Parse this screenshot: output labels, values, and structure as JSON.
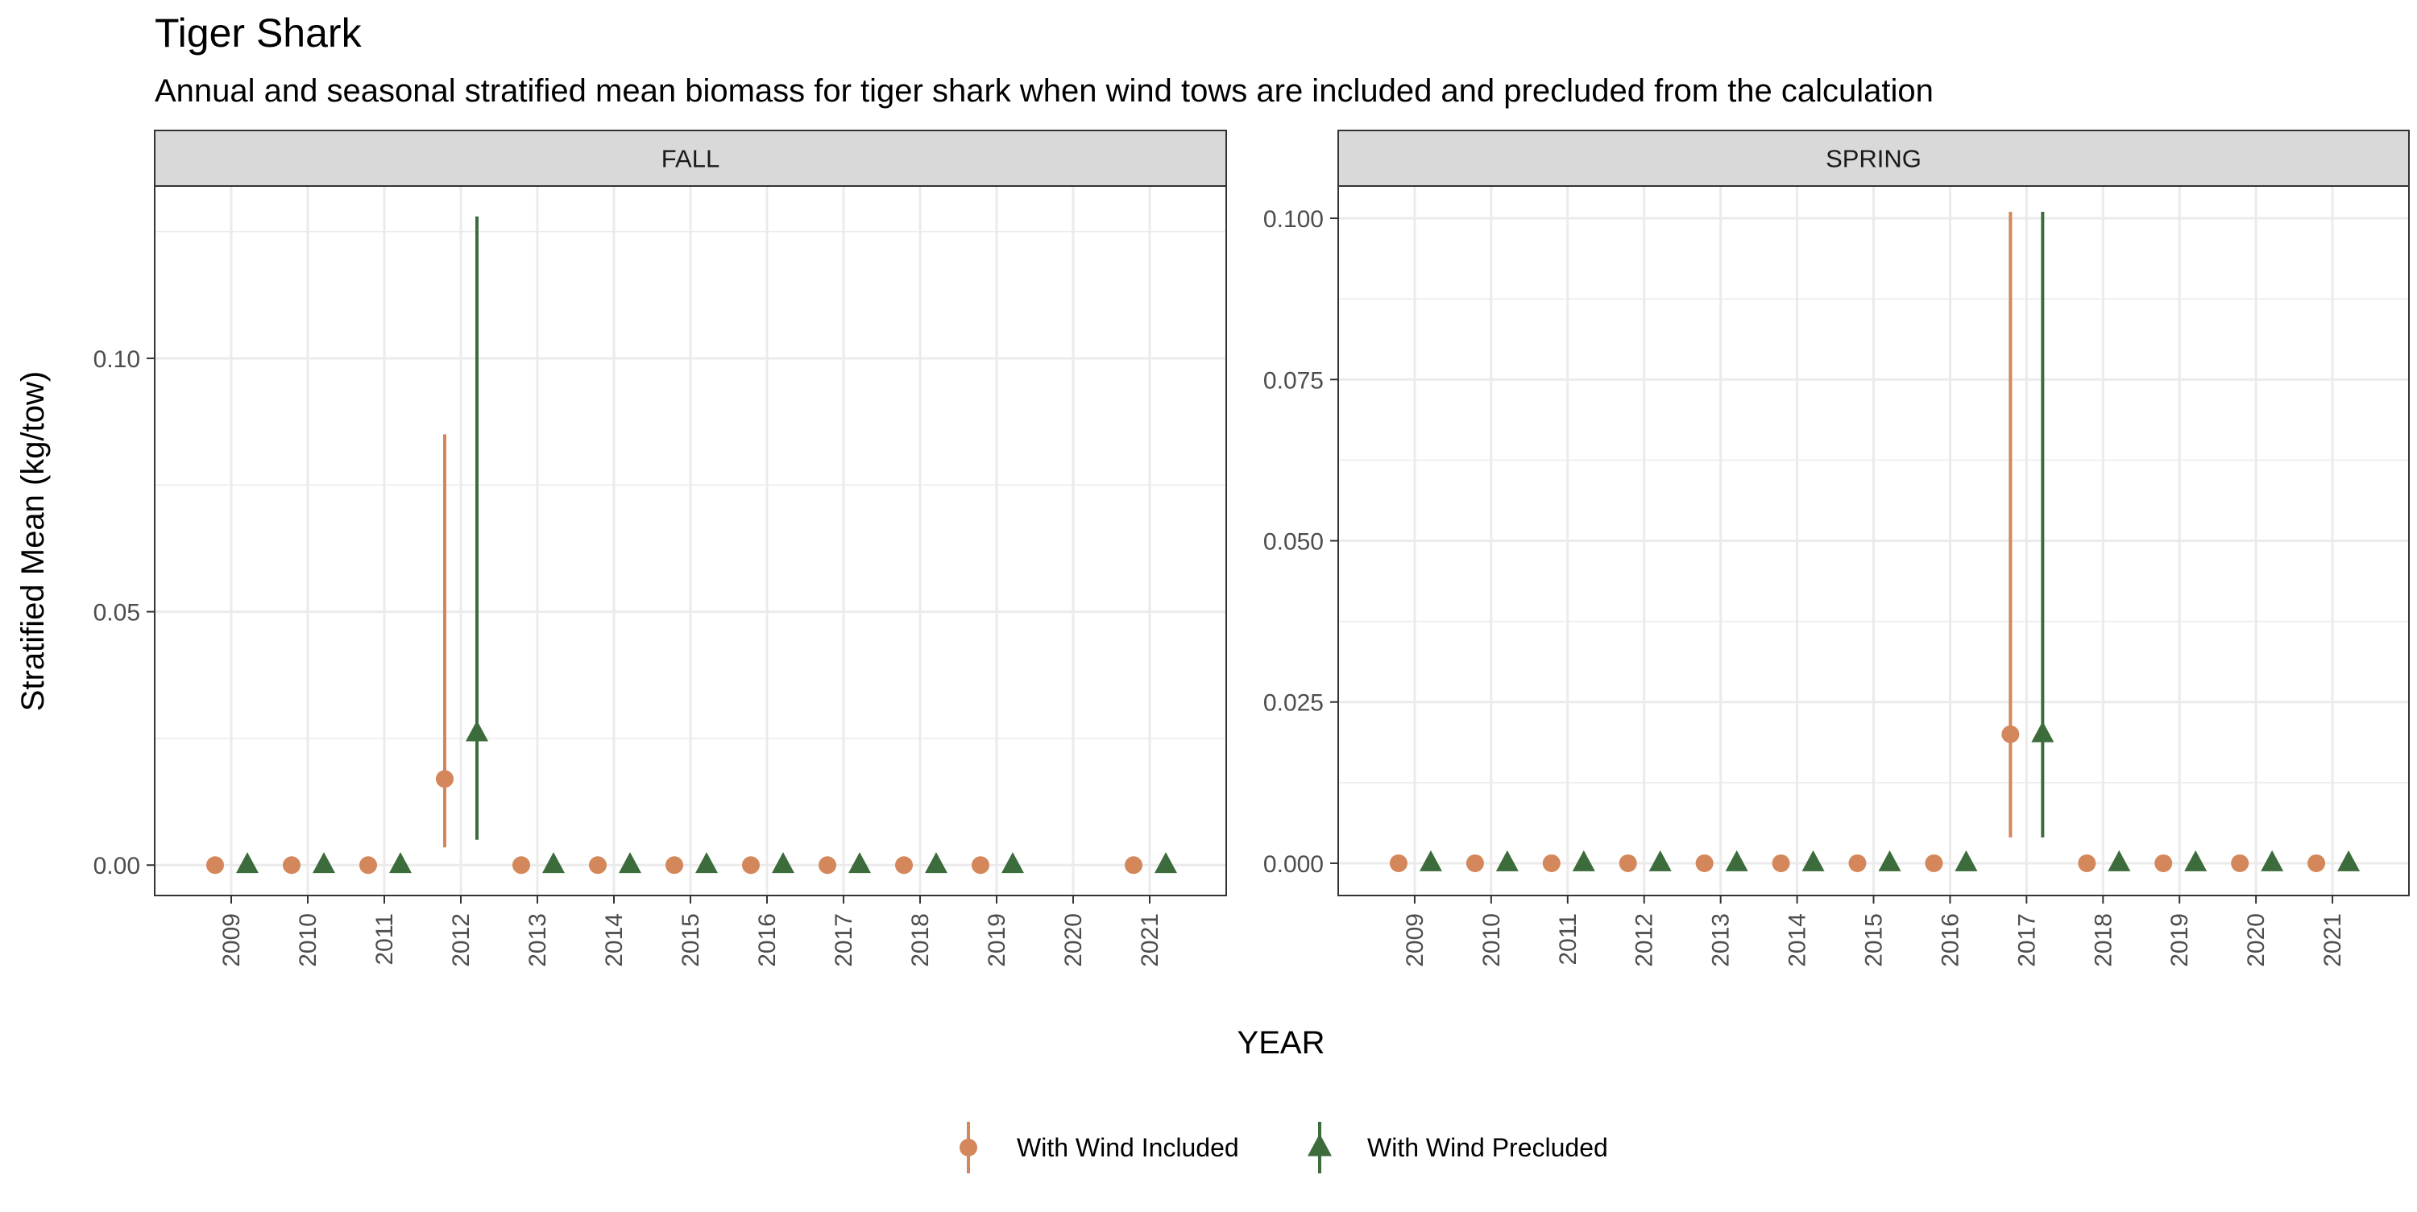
{
  "title": "Tiger Shark",
  "subtitle": "Annual and seasonal stratified mean biomass for tiger shark when wind tows are included and precluded from the calculation",
  "ylabel": "Stratified Mean (kg/tow)",
  "xlabel": "YEAR",
  "colors": {
    "included": "#D4875A",
    "precluded": "#3C6B3C",
    "strip_fill": "#D9D9D9",
    "panel_border": "#333333",
    "grid": "#EBEBEB",
    "tick_text": "#4D4D4D"
  },
  "legend": {
    "position": "bottom",
    "items": [
      {
        "key": "included",
        "label": "With Wind Included",
        "marker": "circle"
      },
      {
        "key": "precluded",
        "label": "With Wind Precluded",
        "marker": "triangle"
      }
    ]
  },
  "chart_data": [
    {
      "type": "scatter",
      "panel": "FALL",
      "categories": [
        "2009",
        "2010",
        "2011",
        "2012",
        "2013",
        "2014",
        "2015",
        "2016",
        "2017",
        "2018",
        "2019",
        "2020",
        "2021"
      ],
      "ylim": [
        -0.006,
        0.134
      ],
      "yticks": [
        0.0,
        0.05,
        0.1
      ],
      "ytick_labels": [
        "0.00",
        "0.05",
        "0.10"
      ],
      "grid": true,
      "series": [
        {
          "name": "With Wind Included",
          "key": "included",
          "points": [
            {
              "x": "2009",
              "y": 0
            },
            {
              "x": "2010",
              "y": 0
            },
            {
              "x": "2011",
              "y": 0
            },
            {
              "x": "2012",
              "y": 0.017,
              "low": 0.0035,
              "high": 0.085
            },
            {
              "x": "2013",
              "y": 0
            },
            {
              "x": "2014",
              "y": 0
            },
            {
              "x": "2015",
              "y": 0
            },
            {
              "x": "2016",
              "y": 0
            },
            {
              "x": "2017",
              "y": 0
            },
            {
              "x": "2018",
              "y": 0
            },
            {
              "x": "2019",
              "y": 0
            },
            {
              "x": "2021",
              "y": 0
            }
          ]
        },
        {
          "name": "With Wind Precluded",
          "key": "precluded",
          "points": [
            {
              "x": "2009",
              "y": 0
            },
            {
              "x": "2010",
              "y": 0
            },
            {
              "x": "2011",
              "y": 0
            },
            {
              "x": "2012",
              "y": 0.026,
              "low": 0.005,
              "high": 0.128
            },
            {
              "x": "2013",
              "y": 0
            },
            {
              "x": "2014",
              "y": 0
            },
            {
              "x": "2015",
              "y": 0
            },
            {
              "x": "2016",
              "y": 0
            },
            {
              "x": "2017",
              "y": 0
            },
            {
              "x": "2018",
              "y": 0
            },
            {
              "x": "2019",
              "y": 0
            },
            {
              "x": "2021",
              "y": 0
            }
          ]
        }
      ]
    },
    {
      "type": "scatter",
      "panel": "SPRING",
      "categories": [
        "2009",
        "2010",
        "2011",
        "2012",
        "2013",
        "2014",
        "2015",
        "2016",
        "2017",
        "2018",
        "2019",
        "2020",
        "2021"
      ],
      "ylim": [
        -0.005,
        0.105
      ],
      "yticks": [
        0.0,
        0.025,
        0.05,
        0.075,
        0.1
      ],
      "ytick_labels": [
        "0.000",
        "0.025",
        "0.050",
        "0.075",
        "0.100"
      ],
      "grid": true,
      "series": [
        {
          "name": "With Wind Included",
          "key": "included",
          "points": [
            {
              "x": "2009",
              "y": 0
            },
            {
              "x": "2010",
              "y": 0
            },
            {
              "x": "2011",
              "y": 0
            },
            {
              "x": "2012",
              "y": 0
            },
            {
              "x": "2013",
              "y": 0
            },
            {
              "x": "2014",
              "y": 0
            },
            {
              "x": "2015",
              "y": 0
            },
            {
              "x": "2016",
              "y": 0
            },
            {
              "x": "2017",
              "y": 0.02,
              "low": 0.004,
              "high": 0.101
            },
            {
              "x": "2018",
              "y": 0
            },
            {
              "x": "2019",
              "y": 0
            },
            {
              "x": "2020",
              "y": 0
            },
            {
              "x": "2021",
              "y": 0
            }
          ]
        },
        {
          "name": "With Wind Precluded",
          "key": "precluded",
          "points": [
            {
              "x": "2009",
              "y": 0
            },
            {
              "x": "2010",
              "y": 0
            },
            {
              "x": "2011",
              "y": 0
            },
            {
              "x": "2012",
              "y": 0
            },
            {
              "x": "2013",
              "y": 0
            },
            {
              "x": "2014",
              "y": 0
            },
            {
              "x": "2015",
              "y": 0
            },
            {
              "x": "2016",
              "y": 0
            },
            {
              "x": "2017",
              "y": 0.02,
              "low": 0.004,
              "high": 0.101
            },
            {
              "x": "2018",
              "y": 0
            },
            {
              "x": "2019",
              "y": 0
            },
            {
              "x": "2020",
              "y": 0
            },
            {
              "x": "2021",
              "y": 0
            }
          ]
        }
      ]
    }
  ]
}
